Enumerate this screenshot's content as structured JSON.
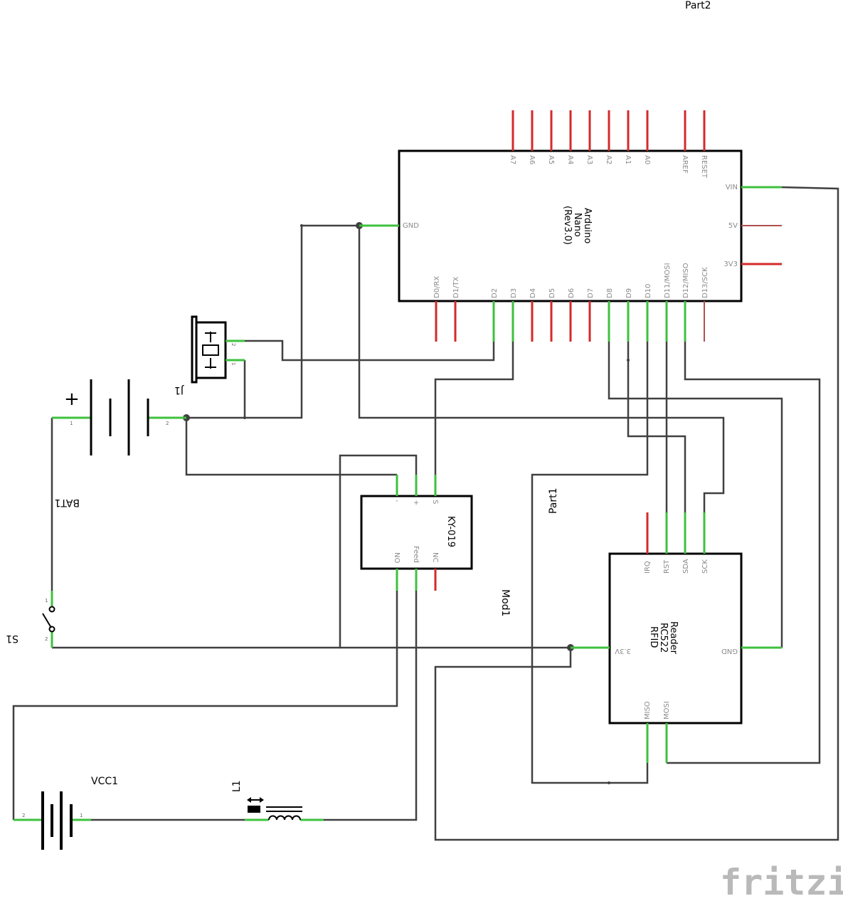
{
  "labels": {
    "part2": "Part2",
    "part1": "Part1",
    "mod1": "Mod1",
    "bat1": "BAT1",
    "s1": "S1",
    "j1": "J1",
    "vcc1": "VCC1",
    "l1": "L1"
  },
  "arduino": {
    "title_lines": [
      "Arduino",
      "Nano",
      "(Rev3.0)"
    ],
    "top_pins": [
      "A7",
      "A6",
      "A5",
      "A4",
      "A3",
      "A2",
      "A1",
      "A0",
      "AREF",
      "RESET"
    ],
    "right_pins": [
      "VIN",
      "5V",
      "3V3"
    ],
    "left_pins": [
      "GND"
    ],
    "bottom_pins": [
      "D0/RX",
      "D1/TX",
      "D2",
      "D3",
      "D4",
      "D5",
      "D6",
      "D7",
      "D8",
      "D9",
      "D10",
      "D11/MOSI",
      "D12/MISO",
      "D13/SCK"
    ]
  },
  "relay": {
    "title": "KY-019",
    "top_pins": [
      "-",
      "+",
      "S"
    ],
    "bottom_pins": [
      "NO",
      "Feed",
      "NC"
    ]
  },
  "rfid": {
    "title_lines": [
      "RFID",
      "RC522",
      "Reader"
    ],
    "top_pins": [
      "IRQ",
      "RST",
      "SDA",
      "SCK"
    ],
    "left_pins": [
      "3.3V"
    ],
    "right_pins": [
      "GND"
    ],
    "bottom_pins": [
      "MISO",
      "MOSI"
    ]
  },
  "battery": {
    "plus": "+",
    "pin1": "1",
    "pin2": "2"
  },
  "switch": {
    "pin1": "1",
    "pin2": "2"
  },
  "buzzer": {
    "pin1": "1",
    "pin2": "2"
  },
  "vcc": {
    "pin1": "1",
    "pin2": "2"
  },
  "watermark": "fritzing",
  "colors": {
    "connected": "#3ec13e",
    "unconnected": "#d42a2a",
    "wire": "#404040"
  }
}
